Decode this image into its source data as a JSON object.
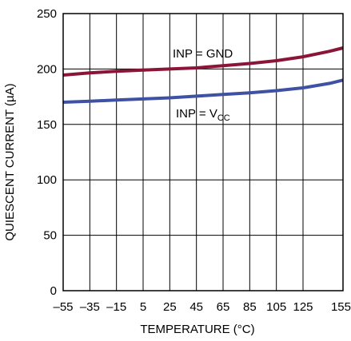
{
  "chart_data": {
    "type": "line",
    "xlabel": "TEMPERATURE (°C)",
    "ylabel": "QUIESCENT CURRENT (µA)",
    "xlim": [
      -55,
      155
    ],
    "ylim": [
      0,
      250
    ],
    "x_ticks": [
      -55,
      -35,
      -15,
      5,
      25,
      45,
      65,
      85,
      105,
      125,
      155
    ],
    "x_tick_labels": [
      "–55",
      "–35",
      "–15",
      "5",
      "25",
      "45",
      "65",
      "85",
      "105",
      "125",
      "155"
    ],
    "y_ticks": [
      0,
      50,
      100,
      150,
      200,
      250
    ],
    "y_tick_labels": [
      "0",
      "50",
      "100",
      "150",
      "200",
      "250"
    ],
    "grid": true,
    "series": [
      {
        "color": "#8B1538",
        "x": [
          -55,
          -35,
          -15,
          5,
          25,
          45,
          65,
          85,
          105,
          125,
          145,
          155
        ],
        "values": [
          194.5,
          196.5,
          198,
          199,
          200,
          201,
          203,
          205,
          207.5,
          211,
          216,
          219
        ]
      },
      {
        "color": "#3F51A3",
        "x": [
          -55,
          -35,
          -15,
          5,
          25,
          45,
          65,
          85,
          105,
          125,
          145,
          155
        ],
        "values": [
          170,
          171,
          172,
          173,
          174,
          175.5,
          177,
          178.5,
          180.5,
          183,
          187,
          190
        ]
      }
    ],
    "annotations": [
      {
        "text": "INP = GND"
      },
      {
        "text": "INP = V",
        "subscript": "CC"
      }
    ]
  }
}
